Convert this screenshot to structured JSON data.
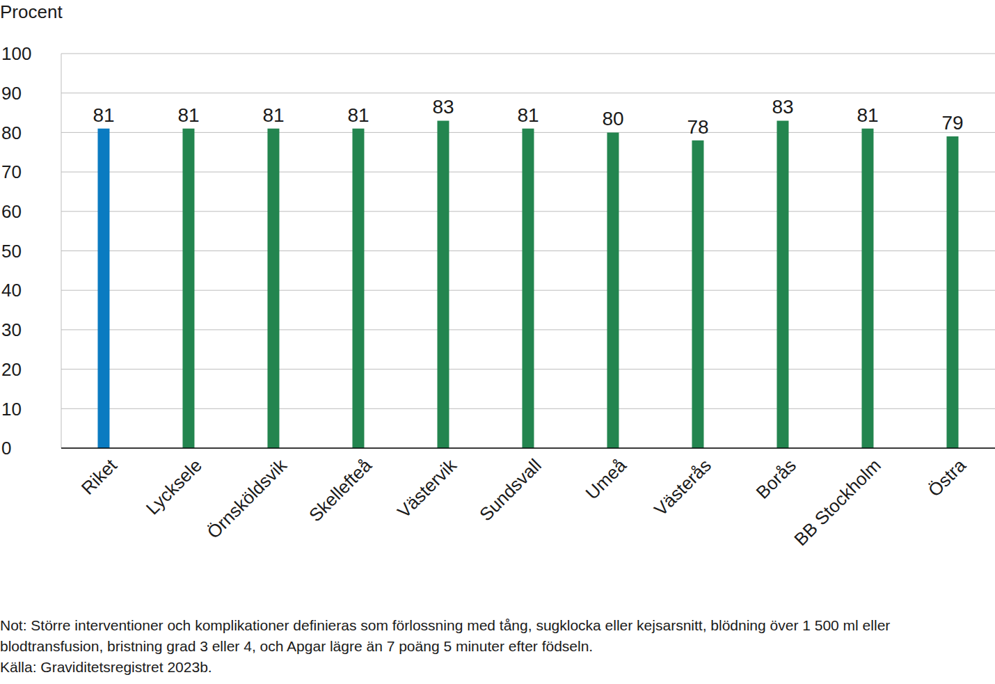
{
  "chart_data": {
    "type": "bar",
    "y_label": "Procent",
    "categories": [
      "Riket",
      "Lycksele",
      "Örnsköldsvik",
      "Skellefteå",
      "Västervik",
      "Sundsvall",
      "Umeå",
      "Västerås",
      "Borås",
      "BB Stockholm",
      "Östra"
    ],
    "values": [
      81,
      81,
      81,
      81,
      83,
      81,
      80,
      78,
      83,
      81,
      79
    ],
    "colors": [
      "#0a7bc1",
      "#23854f",
      "#23854f",
      "#23854f",
      "#23854f",
      "#23854f",
      "#23854f",
      "#23854f",
      "#23854f",
      "#23854f",
      "#23854f"
    ],
    "ylim": [
      0,
      100
    ],
    "yticks": [
      0,
      10,
      20,
      30,
      40,
      50,
      60,
      70,
      80,
      90,
      100
    ],
    "grid": true,
    "data_labels": true,
    "note": "Not: Större interventioner och komplikationer definieras som förlossning med tång, sugklocka eller kejsarsnitt, blödning över 1 500 ml eller blodtransfusion, bristning grad 3 eller 4, och Apgar lägre än 7 poäng 5 minuter efter födseln.",
    "source": "Källa: Graviditetsregistret 2023b."
  }
}
